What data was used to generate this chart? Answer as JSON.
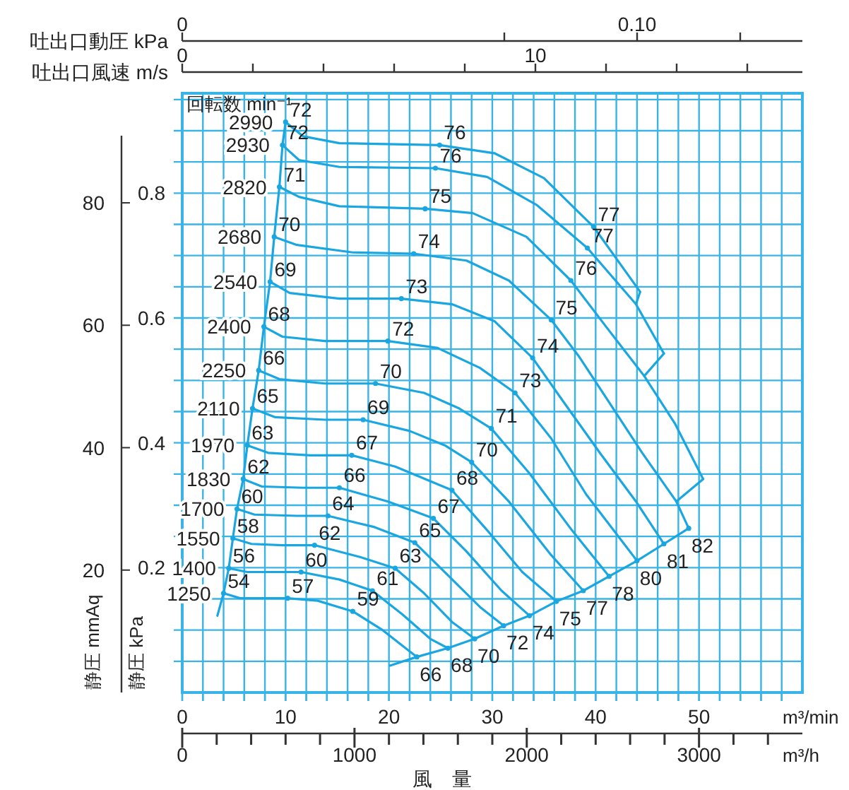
{
  "chart_data": {
    "type": "line",
    "legend_title": "回転数 min⁻¹",
    "xlabel": "m³/min",
    "ylabel": "静圧 kPa",
    "y2label": "静圧 mmAq",
    "x2label": "m³/h",
    "xlim": [
      0,
      60
    ],
    "ylim": [
      0,
      0.96
    ],
    "y2lim": [
      0,
      97.9
    ],
    "x2lim": [
      0,
      3600
    ],
    "grid": true,
    "line_style": "solid",
    "xticks": [
      0,
      {
        "value": 2,
        "label": null
      },
      {
        "value": 4,
        "label": null
      },
      {
        "value": 6,
        "label": null
      },
      {
        "value": 8,
        "label": null
      },
      10,
      {
        "value": 12,
        "label": null
      },
      {
        "value": 14,
        "label": null
      },
      {
        "value": 16,
        "label": null
      },
      {
        "value": 18,
        "label": null
      },
      20,
      {
        "value": 22,
        "label": null
      },
      {
        "value": 24,
        "label": null
      },
      {
        "value": 26,
        "label": null
      },
      {
        "value": 28,
        "label": null
      },
      30,
      {
        "value": 32,
        "label": null
      },
      {
        "value": 34,
        "label": null
      },
      {
        "value": 36,
        "label": null
      },
      {
        "value": 38,
        "label": null
      },
      40,
      {
        "value": 42,
        "label": null
      },
      {
        "value": 44,
        "label": null
      },
      {
        "value": 46,
        "label": null
      },
      {
        "value": 48,
        "label": null
      },
      50,
      {
        "value": 52,
        "label": null
      },
      {
        "value": 54,
        "label": null
      },
      {
        "value": 56,
        "label": null
      },
      {
        "value": 58,
        "label": null
      }
    ],
    "yticks": [
      {
        "value": 0.05,
        "label": null
      },
      {
        "value": 0.1,
        "label": null
      },
      {
        "value": 0.15,
        "label": null
      },
      0.2,
      {
        "value": 0.25,
        "label": null
      },
      {
        "value": 0.3,
        "label": null
      },
      {
        "value": 0.35,
        "label": null
      },
      0.4,
      {
        "value": 0.45,
        "label": null
      },
      {
        "value": 0.5,
        "label": null
      },
      {
        "value": 0.55,
        "label": null
      },
      0.6,
      {
        "value": 0.65,
        "label": null
      },
      {
        "value": 0.7,
        "label": null
      },
      {
        "value": 0.75,
        "label": null
      },
      0.8,
      {
        "value": 0.85,
        "label": null
      },
      {
        "value": 0.9,
        "label": null
      },
      {
        "value": 0.95,
        "label": null
      }
    ],
    "y2ticks": [
      20,
      40,
      60,
      80
    ],
    "x2ticks": [
      0,
      1000,
      2000,
      3000
    ],
    "series": [
      {
        "name": "2990",
        "color": "#1aa6e0",
        "x": [
          10.0,
          11.7,
          15.2,
          24.9,
          30.2,
          35.0,
          39.8,
          44.3
        ],
        "values": [
          0.914,
          0.891,
          0.88,
          0.877,
          0.864,
          0.824,
          0.746,
          0.642
        ]
      },
      {
        "name": "2930",
        "color": "#1aa6e0",
        "x": [
          9.7,
          11.3,
          15.2,
          24.5,
          29.5,
          34.3,
          39.2,
          43.9,
          46.6
        ],
        "values": [
          0.877,
          0.853,
          0.842,
          0.84,
          0.826,
          0.781,
          0.712,
          0.622,
          0.543
        ]
      },
      {
        "name": "2820",
        "color": "#1aa6e0",
        "x": [
          9.4,
          11.3,
          15.2,
          23.5,
          28.1,
          33.3,
          37.6,
          41.1,
          44.7,
          47.7,
          50.4
        ],
        "values": [
          0.81,
          0.794,
          0.779,
          0.775,
          0.768,
          0.73,
          0.66,
          0.584,
          0.507,
          0.43,
          0.342
        ]
      },
      {
        "name": "2680",
        "color": "#1aa6e0",
        "x": [
          8.9,
          11.1,
          16.5,
          22.4,
          27.5,
          31.6,
          35.7,
          38.4,
          41.1,
          44.5,
          47.8,
          49.0
        ],
        "values": [
          0.73,
          0.717,
          0.705,
          0.703,
          0.692,
          0.66,
          0.597,
          0.538,
          0.47,
          0.384,
          0.306,
          0.263
        ]
      },
      {
        "name": "2540",
        "color": "#1aa6e0",
        "x": [
          8.5,
          10.4,
          15.2,
          21.2,
          26.1,
          30.2,
          33.9,
          37.0,
          40.4,
          43.9,
          46.6
        ],
        "values": [
          0.658,
          0.64,
          0.631,
          0.631,
          0.622,
          0.595,
          0.536,
          0.463,
          0.384,
          0.306,
          0.238
        ]
      },
      {
        "name": "2400",
        "color": "#1aa6e0",
        "x": [
          7.9,
          9.7,
          13.8,
          19.9,
          24.7,
          28.8,
          32.2,
          35.7,
          39.1,
          44.0
        ],
        "values": [
          0.586,
          0.57,
          0.563,
          0.563,
          0.552,
          0.52,
          0.48,
          0.407,
          0.317,
          0.211
        ]
      },
      {
        "name": "2250",
        "color": "#1aa6e0",
        "x": [
          7.4,
          9.4,
          13.8,
          18.7,
          23.4,
          26.8,
          29.9,
          33.6,
          37.7,
          41.3
        ],
        "values": [
          0.516,
          0.502,
          0.495,
          0.495,
          0.48,
          0.455,
          0.423,
          0.351,
          0.26,
          0.186
        ]
      },
      {
        "name": "2110",
        "color": "#1aa6e0",
        "x": [
          6.8,
          9.0,
          13.8,
          17.5,
          22.0,
          25.4,
          28.0,
          31.6,
          35.7,
          38.8
        ],
        "values": [
          0.455,
          0.441,
          0.437,
          0.437,
          0.419,
          0.396,
          0.369,
          0.306,
          0.22,
          0.163
        ]
      },
      {
        "name": "1970",
        "color": "#1aa6e0",
        "x": [
          6.3,
          8.3,
          12.4,
          16.4,
          20.6,
          26.1,
          29.5,
          32.9,
          36.2
        ],
        "values": [
          0.396,
          0.384,
          0.38,
          0.38,
          0.362,
          0.324,
          0.26,
          0.193,
          0.146
        ]
      },
      {
        "name": "1830",
        "color": "#1aa6e0",
        "x": [
          5.9,
          7.7,
          11.7,
          15.2,
          19.9,
          24.3,
          27.5,
          30.9,
          33.6
        ],
        "values": [
          0.342,
          0.33,
          0.328,
          0.328,
          0.306,
          0.279,
          0.226,
          0.163,
          0.123
        ]
      },
      {
        "name": "1700",
        "color": "#1aa6e0",
        "x": [
          5.3,
          7.0,
          11.1,
          14.1,
          18.6,
          22.5,
          25.4,
          28.8,
          31.1
        ],
        "values": [
          0.294,
          0.285,
          0.283,
          0.283,
          0.265,
          0.24,
          0.193,
          0.137,
          0.107
        ]
      },
      {
        "name": "1550",
        "color": "#1aa6e0",
        "x": [
          4.9,
          6.7,
          9.7,
          12.8,
          17.2,
          20.6,
          23.4,
          26.1,
          28.3
        ],
        "values": [
          0.247,
          0.238,
          0.236,
          0.236,
          0.217,
          0.199,
          0.159,
          0.113,
          0.086
        ]
      },
      {
        "name": "1400",
        "color": "#1aa6e0",
        "x": [
          4.5,
          6.3,
          9.0,
          11.5,
          15.2,
          18.4,
          21.3,
          24.0,
          25.7
        ],
        "values": [
          0.199,
          0.193,
          0.193,
          0.193,
          0.181,
          0.163,
          0.125,
          0.086,
          0.071
        ]
      },
      {
        "name": "1250",
        "color": "#1aa6e0",
        "x": [
          4.0,
          5.6,
          10.2,
          13.1,
          16.5,
          19.3,
          21.3,
          22.7
        ],
        "values": [
          0.159,
          0.151,
          0.151,
          0.147,
          0.13,
          0.101,
          0.075,
          0.057
        ]
      },
      {
        "color": "#1aa6e0",
        "x": [
          3.4,
          4.0,
          4.5,
          4.9,
          5.3,
          5.9,
          6.3,
          6.8,
          7.4,
          7.9,
          8.5,
          8.9,
          9.4,
          9.7,
          10.0
        ],
        "values": [
          0.123,
          0.159,
          0.199,
          0.247,
          0.294,
          0.342,
          0.396,
          0.455,
          0.516,
          0.586,
          0.658,
          0.73,
          0.81,
          0.877,
          0.914
        ]
      },
      {
        "color": "#1aa6e0",
        "x": [
          20.1,
          22.7,
          25.7,
          28.3,
          31.1,
          33.6,
          36.2,
          38.8,
          41.3,
          44.0,
          46.6,
          49.0
        ],
        "values": [
          0.043,
          0.057,
          0.071,
          0.086,
          0.107,
          0.123,
          0.146,
          0.163,
          0.186,
          0.211,
          0.238,
          0.263
        ]
      },
      {
        "color": "#1aa6e0",
        "x": [
          44.3,
          43.9
        ],
        "values": [
          0.642,
          0.622
        ]
      },
      {
        "color": "#1aa6e0",
        "x": [
          46.6,
          44.7
        ],
        "values": [
          0.543,
          0.507
        ]
      },
      {
        "color": "#1aa6e0",
        "x": [
          50.4,
          47.8
        ],
        "values": [
          0.342,
          0.306
        ]
      }
    ],
    "annotations": [
      "風　量",
      "吐出口動圧 kPa",
      "0",
      "0.10",
      "吐出口風速 m/s",
      "0",
      "10",
      {
        "text": "72",
        "x": 10.0,
        "y": 0.914
      },
      {
        "text": "76",
        "x": 24.9,
        "y": 0.877
      },
      {
        "text": "77",
        "x": 39.8,
        "y": 0.746
      },
      {
        "text": "72",
        "x": 9.7,
        "y": 0.877
      },
      {
        "text": "76",
        "x": 24.5,
        "y": 0.84
      },
      {
        "text": "77",
        "x": 39.2,
        "y": 0.712
      },
      {
        "text": "71",
        "x": 9.4,
        "y": 0.81
      },
      {
        "text": "75",
        "x": 23.5,
        "y": 0.775
      },
      {
        "text": "76",
        "x": 37.6,
        "y": 0.66
      },
      {
        "text": "70",
        "x": 8.9,
        "y": 0.73
      },
      {
        "text": "74",
        "x": 22.4,
        "y": 0.703
      },
      {
        "text": "75",
        "x": 35.7,
        "y": 0.597
      },
      {
        "text": "82",
        "x": 49.0,
        "y": 0.263
      },
      {
        "text": "69",
        "x": 8.5,
        "y": 0.658
      },
      {
        "text": "73",
        "x": 21.2,
        "y": 0.631
      },
      {
        "text": "74",
        "x": 33.9,
        "y": 0.536
      },
      {
        "text": "81",
        "x": 46.6,
        "y": 0.238
      },
      {
        "text": "68",
        "x": 7.9,
        "y": 0.586
      },
      {
        "text": "72",
        "x": 19.9,
        "y": 0.563
      },
      {
        "text": "73",
        "x": 32.2,
        "y": 0.48
      },
      {
        "text": "80",
        "x": 44.0,
        "y": 0.211
      },
      {
        "text": "66",
        "x": 7.4,
        "y": 0.516
      },
      {
        "text": "70",
        "x": 18.7,
        "y": 0.495
      },
      {
        "text": "71",
        "x": 29.9,
        "y": 0.423
      },
      {
        "text": "78",
        "x": 41.3,
        "y": 0.186
      },
      {
        "text": "65",
        "x": 6.8,
        "y": 0.455
      },
      {
        "text": "69",
        "x": 17.5,
        "y": 0.437
      },
      {
        "text": "70",
        "x": 28.0,
        "y": 0.369
      },
      {
        "text": "77",
        "x": 38.8,
        "y": 0.163
      },
      {
        "text": "63",
        "x": 6.3,
        "y": 0.396
      },
      {
        "text": "67",
        "x": 16.4,
        "y": 0.38
      },
      {
        "text": "68",
        "x": 26.1,
        "y": 0.324
      },
      {
        "text": "75",
        "x": 36.2,
        "y": 0.146
      },
      {
        "text": "62",
        "x": 5.9,
        "y": 0.342
      },
      {
        "text": "66",
        "x": 15.2,
        "y": 0.328
      },
      {
        "text": "67",
        "x": 24.3,
        "y": 0.279
      },
      {
        "text": "74",
        "x": 33.6,
        "y": 0.123
      },
      {
        "text": "60",
        "x": 5.3,
        "y": 0.294
      },
      {
        "text": "64",
        "x": 14.1,
        "y": 0.283
      },
      {
        "text": "65",
        "x": 22.5,
        "y": 0.24
      },
      {
        "text": "72",
        "x": 31.1,
        "y": 0.107
      },
      {
        "text": "58",
        "x": 4.9,
        "y": 0.247
      },
      {
        "text": "62",
        "x": 12.8,
        "y": 0.236
      },
      {
        "text": "63",
        "x": 20.6,
        "y": 0.199
      },
      {
        "text": "70",
        "x": 28.3,
        "y": 0.086
      },
      {
        "text": "56",
        "x": 4.5,
        "y": 0.199
      },
      {
        "text": "60",
        "x": 11.5,
        "y": 0.193
      },
      {
        "text": "61",
        "x": 18.4,
        "y": 0.163
      },
      {
        "text": "68",
        "x": 25.7,
        "y": 0.071
      },
      {
        "text": "54",
        "x": 4.0,
        "y": 0.159
      },
      {
        "text": "57",
        "x": 10.2,
        "y": 0.151
      },
      {
        "text": "59",
        "x": 16.5,
        "y": 0.13
      },
      {
        "text": "66",
        "x": 22.7,
        "y": 0.057
      }
    ]
  }
}
